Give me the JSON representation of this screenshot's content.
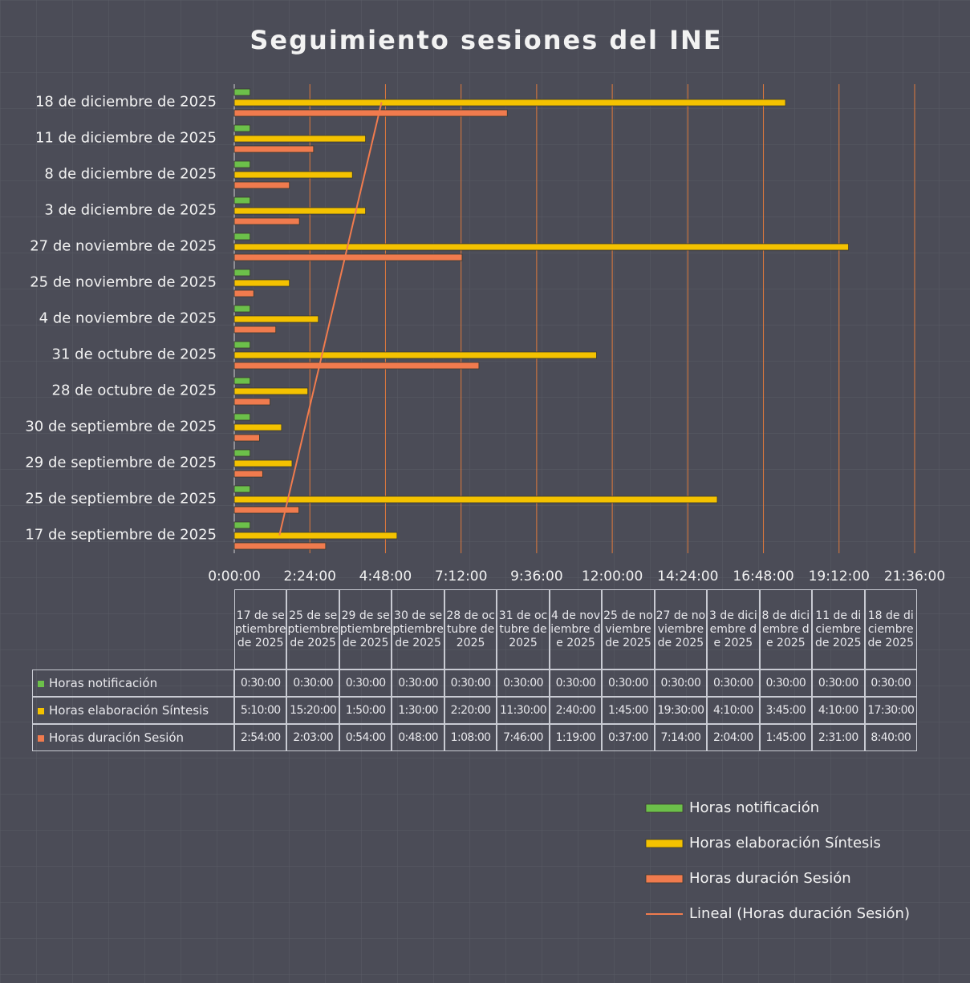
{
  "chart_data": {
    "type": "bar",
    "orientation": "horizontal",
    "title": "Seguimiento sesiones del INE",
    "categories": [
      "17 de septiembre de 2025",
      "25 de septiembre de 2025",
      "29 de septiembre de 2025",
      "30 de septiembre de 2025",
      "28 de octubre de 2025",
      "31 de octubre de 2025",
      "4 de noviembre de 2025",
      "25 de noviembre de 2025",
      "27 de noviembre de 2025",
      "3 de diciembre de 2025",
      "8 de diciembre de 2025",
      "11 de diciembre de 2025",
      "18 de diciembre de 2025"
    ],
    "series": [
      {
        "name": "Horas notificación",
        "color": "#6cc04a",
        "values": [
          0.5,
          0.5,
          0.5,
          0.5,
          0.5,
          0.5,
          0.5,
          0.5,
          0.5,
          0.5,
          0.5,
          0.5,
          0.5
        ],
        "value_labels": [
          "0:30:00",
          "0:30:00",
          "0:30:00",
          "0:30:00",
          "0:30:00",
          "0:30:00",
          "0:30:00",
          "0:30:00",
          "0:30:00",
          "0:30:00",
          "0:30:00",
          "0:30:00",
          "0:30:00"
        ]
      },
      {
        "name": "Horas elaboración Síntesis",
        "color": "#f4c200",
        "values": [
          5.16667,
          15.33333,
          1.83333,
          1.5,
          2.33333,
          11.5,
          2.66667,
          1.75,
          19.5,
          4.16667,
          3.75,
          4.16667,
          17.5
        ],
        "value_labels": [
          "5:10:00",
          "15:20:00",
          "1:50:00",
          "1:30:00",
          "2:20:00",
          "11:30:00",
          "2:40:00",
          "1:45:00",
          "19:30:00",
          "4:10:00",
          "3:45:00",
          "4:10:00",
          "17:30:00"
        ]
      },
      {
        "name": "Horas duración Sesión",
        "color": "#f07b4e",
        "values": [
          2.9,
          2.05,
          0.9,
          0.8,
          1.13333,
          7.76667,
          1.31667,
          0.61667,
          7.23333,
          2.06667,
          1.75,
          2.51667,
          8.66667
        ],
        "value_labels": [
          "2:54:00",
          "2:03:00",
          "0:54:00",
          "0:48:00",
          "1:08:00",
          "7:46:00",
          "1:19:00",
          "0:37:00",
          "7:14:00",
          "2:04:00",
          "1:45:00",
          "2:31:00",
          "8:40:00"
        ]
      }
    ],
    "xlim": [
      0,
      21.6
    ],
    "xticks": [
      {
        "value": 0,
        "label": "0:00:00"
      },
      {
        "value": 2.4,
        "label": "2:24:00"
      },
      {
        "value": 4.8,
        "label": "4:48:00"
      },
      {
        "value": 7.2,
        "label": "7:12:00"
      },
      {
        "value": 9.6,
        "label": "9:36:00"
      },
      {
        "value": 12,
        "label": "12:00:00"
      },
      {
        "value": 14.4,
        "label": "14:24:00"
      },
      {
        "value": 16.8,
        "label": "16:48:00"
      },
      {
        "value": 19.2,
        "label": "19:12:00"
      },
      {
        "value": 21.6,
        "label": "21:36:00"
      }
    ],
    "grid": true,
    "grid_color": "#e07a3c",
    "legend": "bottom-right",
    "trendline": {
      "label": "Lineal (Horas duración Sesión)",
      "color": "#f07b4e"
    }
  }
}
